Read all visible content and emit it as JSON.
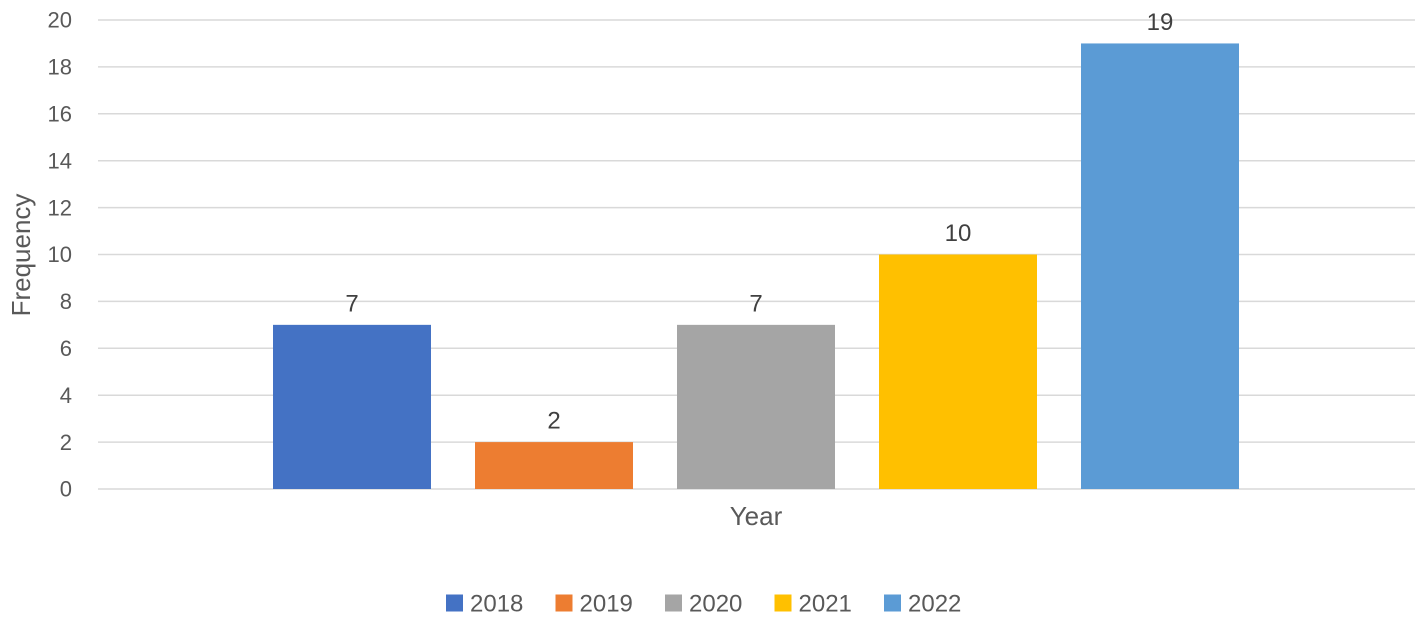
{
  "chart_data": {
    "type": "bar",
    "title": "",
    "xlabel": "Year",
    "ylabel": "Frequency",
    "ylim": [
      0,
      20
    ],
    "y_ticks": [
      0,
      2,
      4,
      6,
      8,
      10,
      12,
      14,
      16,
      18,
      20
    ],
    "grid": true,
    "legend_position": "bottom",
    "categories": [
      "2018",
      "2019",
      "2020",
      "2021",
      "2022"
    ],
    "series": [
      {
        "name": "2018",
        "value": 7,
        "color": "#4472C4"
      },
      {
        "name": "2019",
        "value": 2,
        "color": "#ED7D31"
      },
      {
        "name": "2020",
        "value": 7,
        "color": "#A5A5A5"
      },
      {
        "name": "2021",
        "value": 10,
        "color": "#FFC000"
      },
      {
        "name": "2022",
        "value": 19,
        "color": "#5B9BD5"
      }
    ]
  }
}
